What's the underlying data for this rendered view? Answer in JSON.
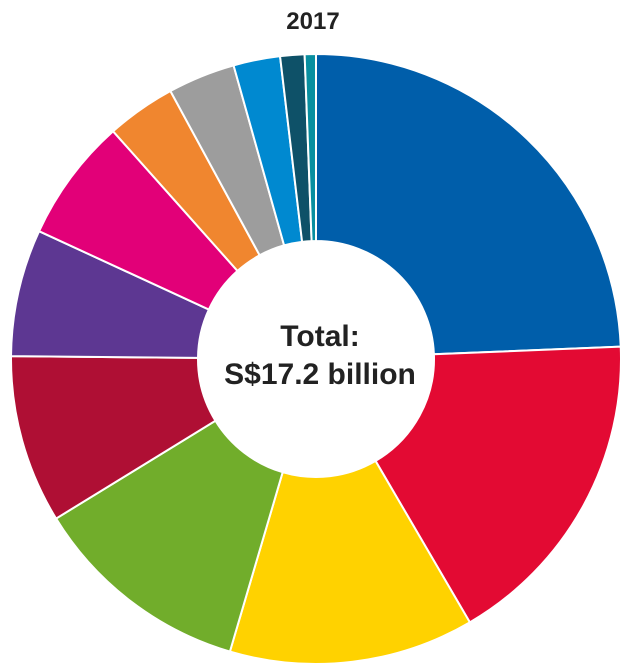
{
  "chart_data": {
    "type": "pie",
    "title": "2017",
    "center_label": {
      "line1": "Total:",
      "line2": "S$17.2 billion"
    },
    "slices": [
      {
        "value": 24.6,
        "color": "#005eaa"
      },
      {
        "value": 17.4,
        "color": "#e30a33"
      },
      {
        "value": 13.1,
        "color": "#ffd200"
      },
      {
        "value": 11.8,
        "color": "#71ad2b"
      },
      {
        "value": 9.0,
        "color": "#af0f34"
      },
      {
        "value": 6.8,
        "color": "#5d3792"
      },
      {
        "value": 6.6,
        "color": "#e20078"
      },
      {
        "value": 3.7,
        "color": "#f0862f"
      },
      {
        "value": 3.6,
        "color": "#9d9d9d"
      },
      {
        "value": 2.5,
        "color": "#0089d0"
      },
      {
        "value": 1.3,
        "color": "#0e5168"
      },
      {
        "value": 0.6,
        "color": "#088fa0"
      }
    ]
  }
}
